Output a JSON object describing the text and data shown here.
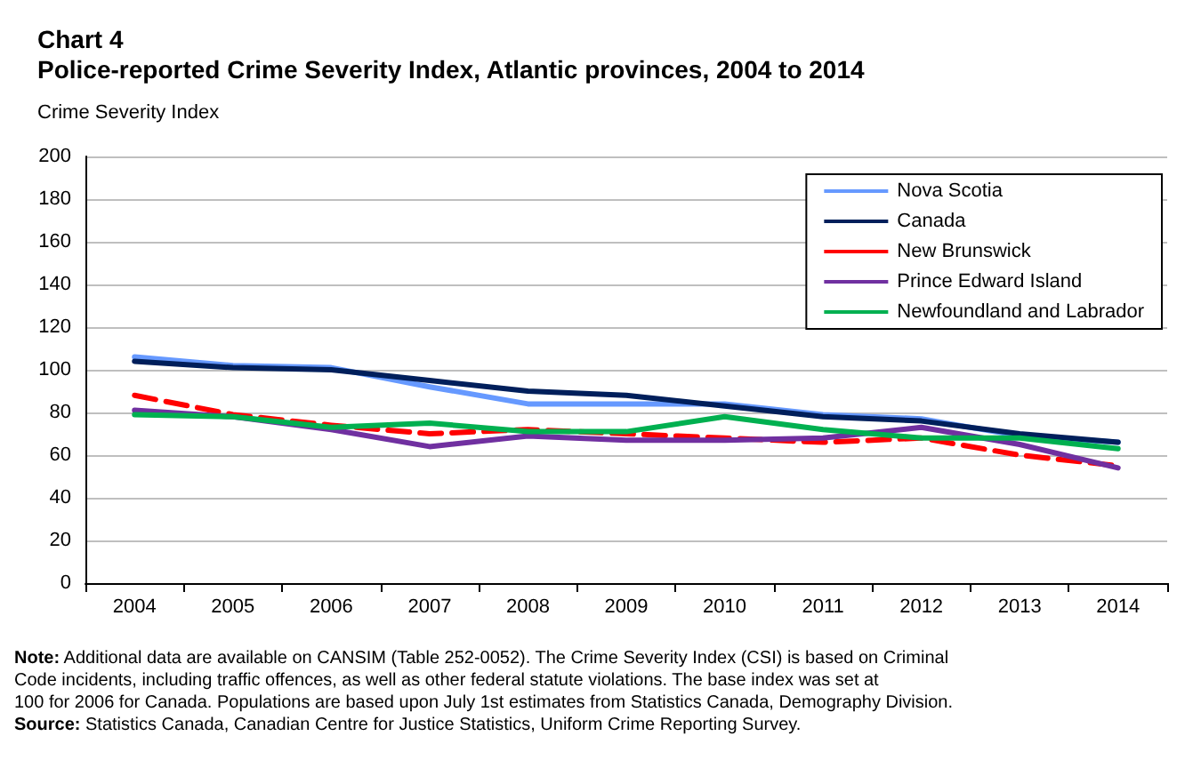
{
  "chart_data": {
    "type": "line",
    "title": "Chart 4",
    "subtitle": "Police-reported Crime Severity Index, Atlantic provinces, 2004 to 2014",
    "ylabel": "Crime Severity Index",
    "categories": [
      "2004",
      "2005",
      "2006",
      "2007",
      "2008",
      "2009",
      "2010",
      "2011",
      "2012",
      "2013",
      "2014"
    ],
    "series": [
      {
        "name": "Nova Scotia",
        "color": "#6699ff",
        "values": [
          106,
          102,
          101,
          92,
          84,
          84,
          84,
          79,
          77,
          69,
          66
        ]
      },
      {
        "name": "Canada",
        "color": "#001f5b",
        "values": [
          104,
          101,
          100,
          95,
          90,
          88,
          83,
          78,
          76,
          70,
          66
        ]
      },
      {
        "name": "New Brunswick",
        "color": "#ff0000",
        "line_style": "dashed",
        "values": [
          88,
          79,
          74,
          70,
          72,
          70,
          68,
          66,
          68,
          60,
          55
        ]
      },
      {
        "name": "Prince Edward Island",
        "color": "#7030a0",
        "values": [
          81,
          78,
          72,
          64,
          69,
          67,
          67,
          68,
          73,
          65,
          54
        ]
      },
      {
        "name": "Newfoundland and Labrador",
        "color": "#00b050",
        "values": [
          79,
          78,
          73,
          75,
          71,
          71,
          78,
          72,
          68,
          68,
          63
        ]
      }
    ],
    "ylim": [
      0,
      200
    ],
    "yticks": [
      0,
      20,
      40,
      60,
      80,
      100,
      120,
      140,
      160,
      180,
      200
    ],
    "grid": "y",
    "legend": "top right",
    "marker": "none",
    "annotations": [
      "Note: Additional data are available on CANSIM (Table 252-0052). The Crime Severity Index (CSI) is based on Criminal Code incidents, including traffic offences, as well as other federal statute violations. The base index was set at 100 for 2006 for Canada. Populations are based upon July 1st estimates from Statistics Canada, Demography Division.",
      "Source: Statistics Canada, Canadian Centre for Justice Statistics, Uniform Crime Reporting Survey."
    ]
  }
}
